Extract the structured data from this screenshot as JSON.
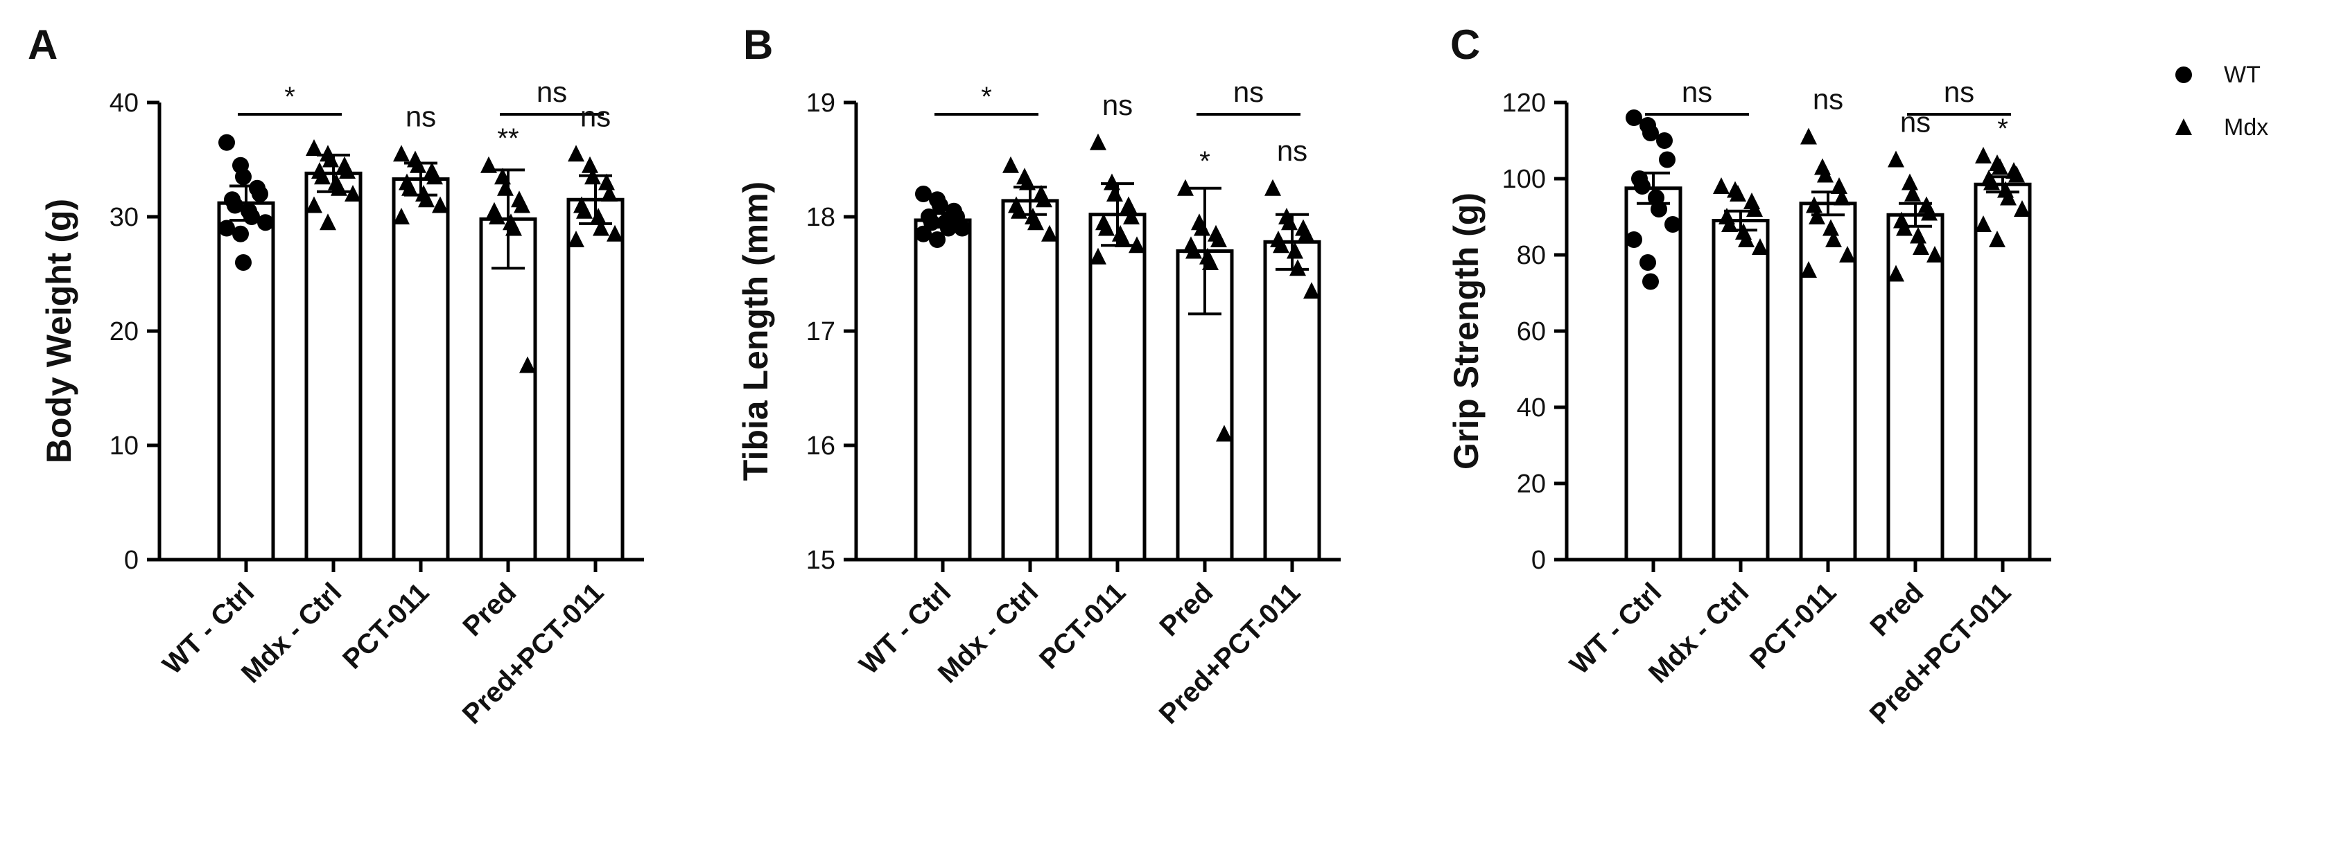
{
  "legend": [
    {
      "label": "WT",
      "marker": "circle"
    },
    {
      "label": "Mdx",
      "marker": "triangle"
    }
  ],
  "chart_data": [
    {
      "panel": "A",
      "type": "bar",
      "ylabel": "Body Weight (g)",
      "xlabel": "",
      "ylim": [
        0,
        40
      ],
      "yticks": [
        0,
        10,
        20,
        30,
        40
      ],
      "categories": [
        "WT - Ctrl",
        "Mdx - Ctrl",
        "PCT-011",
        "Pred",
        "Pred+PCT-011"
      ],
      "values": [
        31.2,
        33.8,
        33.3,
        29.8,
        31.5
      ],
      "errors": [
        1.5,
        1.6,
        1.4,
        4.3,
        2.1
      ],
      "markers": [
        "circle",
        "triangle",
        "triangle",
        "triangle",
        "triangle"
      ],
      "points": [
        [
          36.5,
          34.5,
          33.5,
          32.5,
          32.0,
          31.5,
          31.0,
          30.5,
          30.0,
          29.5,
          29.0,
          28.5,
          26.0
        ],
        [
          36.0,
          35.5,
          35.0,
          34.5,
          34.0,
          34.0,
          33.5,
          33.0,
          32.5,
          32.0,
          31.0,
          29.5
        ],
        [
          35.5,
          35.0,
          34.5,
          34.0,
          33.5,
          33.0,
          32.5,
          32.0,
          31.5,
          31.0,
          30.0
        ],
        [
          34.5,
          33.5,
          32.5,
          31.5,
          31.0,
          30.5,
          30.0,
          29.5,
          29.0,
          17.0
        ],
        [
          35.5,
          34.5,
          33.5,
          33.0,
          32.0,
          31.0,
          30.5,
          30.0,
          29.0,
          28.5,
          28.0
        ]
      ],
      "annotations": [
        {
          "type": "bracket",
          "from": 0,
          "to": 1,
          "text": "*"
        },
        {
          "type": "bracket",
          "from": 3,
          "to": 4,
          "text": "ns"
        },
        {
          "type": "label",
          "at": 2,
          "text": "ns"
        },
        {
          "type": "label",
          "at": 3,
          "text": "**"
        },
        {
          "type": "label",
          "at": 4,
          "text": "ns"
        }
      ]
    },
    {
      "panel": "B",
      "type": "bar",
      "ylabel": "Tibia Length (mm)",
      "xlabel": "",
      "ylim": [
        15,
        19
      ],
      "yticks": [
        15,
        16,
        17,
        18,
        19
      ],
      "categories": [
        "WT - Ctrl",
        "Mdx - Ctrl",
        "PCT-011",
        "Pred",
        "Pred+PCT-011"
      ],
      "values": [
        17.97,
        18.14,
        18.02,
        17.7,
        17.78
      ],
      "errors": [
        0.06,
        0.12,
        0.27,
        0.55,
        0.24
      ],
      "markers": [
        "circle",
        "triangle",
        "triangle",
        "triangle",
        "triangle"
      ],
      "points": [
        [
          18.2,
          18.15,
          18.1,
          18.05,
          18.0,
          18.0,
          17.95,
          17.95,
          17.9,
          17.9,
          17.85,
          17.8
        ],
        [
          18.45,
          18.35,
          18.3,
          18.2,
          18.15,
          18.1,
          18.05,
          18.0,
          17.95,
          17.85
        ],
        [
          18.65,
          18.3,
          18.2,
          18.1,
          18.0,
          17.95,
          17.9,
          17.85,
          17.8,
          17.75,
          17.65
        ],
        [
          18.25,
          17.95,
          17.9,
          17.85,
          17.8,
          17.75,
          17.7,
          17.65,
          17.6,
          16.1
        ],
        [
          18.25,
          18.0,
          17.95,
          17.9,
          17.85,
          17.8,
          17.75,
          17.7,
          17.55,
          17.35
        ]
      ],
      "annotations": [
        {
          "type": "bracket",
          "from": 0,
          "to": 1,
          "text": "*"
        },
        {
          "type": "bracket",
          "from": 3,
          "to": 4,
          "text": "ns"
        },
        {
          "type": "label",
          "at": 2,
          "text": "ns"
        },
        {
          "type": "label",
          "at": 3,
          "text": "*"
        },
        {
          "type": "label",
          "at": 4,
          "text": "ns"
        }
      ]
    },
    {
      "panel": "C",
      "type": "bar",
      "ylabel": "Grip Strength (g)",
      "xlabel": "",
      "ylim": [
        0,
        120
      ],
      "yticks": [
        0,
        20,
        40,
        60,
        80,
        100,
        120
      ],
      "categories": [
        "WT - Ctrl",
        "Mdx - Ctrl",
        "PCT-011",
        "Pred",
        "Pred+PCT-011"
      ],
      "values": [
        97.5,
        89.0,
        93.5,
        90.5,
        98.5
      ],
      "errors": [
        4.0,
        2.5,
        3.0,
        3.0,
        2.0
      ],
      "markers": [
        "circle",
        "triangle",
        "triangle",
        "triangle",
        "triangle"
      ],
      "points": [
        [
          116,
          114,
          112,
          110,
          105,
          100,
          98,
          95,
          92,
          88,
          84,
          78,
          73
        ],
        [
          98,
          97,
          96,
          94,
          92,
          90,
          88,
          86,
          84,
          82
        ],
        [
          111,
          103,
          101,
          98,
          95,
          93,
          90,
          87,
          84,
          80,
          76
        ],
        [
          105,
          99,
          96,
          93,
          91,
          89,
          87,
          85,
          82,
          80,
          75
        ],
        [
          106,
          104,
          103,
          102,
          101,
          100,
          99,
          97,
          95,
          92,
          88,
          84
        ]
      ],
      "annotations": [
        {
          "type": "bracket",
          "from": 0,
          "to": 1,
          "text": "ns"
        },
        {
          "type": "bracket",
          "from": 3,
          "to": 4,
          "text": "ns"
        },
        {
          "type": "label",
          "at": 2,
          "text": "ns"
        },
        {
          "type": "label",
          "at": 3,
          "text": "ns"
        },
        {
          "type": "label",
          "at": 4,
          "text": "*"
        }
      ]
    }
  ]
}
